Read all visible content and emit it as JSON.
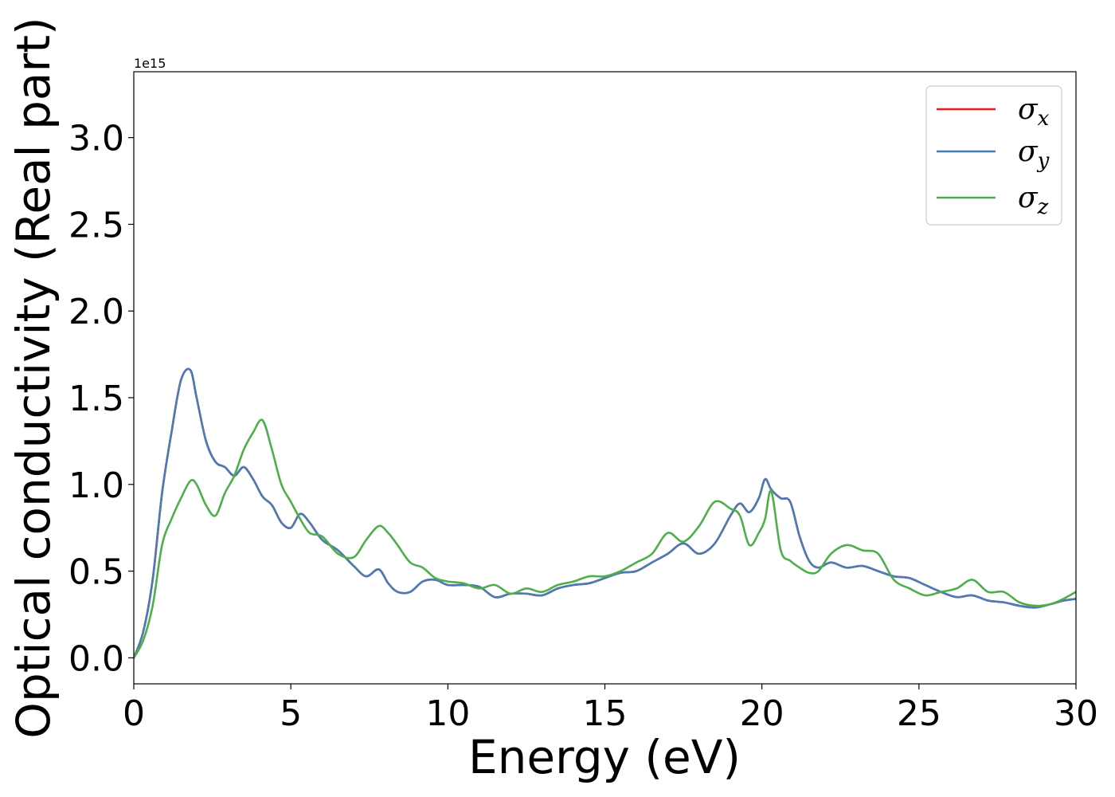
{
  "chart_data": {
    "type": "line",
    "xlabel": "Energy (eV)",
    "ylabel": "Optical conductivity (Real part)",
    "y_offset_label": "1e15",
    "xlim": [
      0,
      30
    ],
    "ylim": [
      -0.15,
      3.38
    ],
    "x_ticks": [
      0,
      5,
      10,
      15,
      20,
      25,
      30
    ],
    "x_tick_labels": [
      "0",
      "5",
      "10",
      "15",
      "20",
      "25",
      "30"
    ],
    "y_ticks": [
      0.0,
      0.5,
      1.0,
      1.5,
      2.0,
      2.5,
      3.0
    ],
    "y_tick_labels": [
      "0.0",
      "0.5",
      "1.0",
      "1.5",
      "2.0",
      "2.5",
      "3.0"
    ],
    "grid": false,
    "legend_position": "top-right",
    "series": [
      {
        "name": "σ",
        "subscript": "x",
        "color": "#e41a1c",
        "x": [
          0,
          0.3,
          0.6,
          0.9,
          1.2,
          1.5,
          1.8,
          2.0,
          2.3,
          2.6,
          2.9,
          3.2,
          3.5,
          3.8,
          4.1,
          4.4,
          4.7,
          5.0,
          5.3,
          5.6,
          6.0,
          6.5,
          7.0,
          7.4,
          7.8,
          8.1,
          8.4,
          8.8,
          9.2,
          9.6,
          10.0,
          10.5,
          11.0,
          11.5,
          12.0,
          12.5,
          13.0,
          13.5,
          14.0,
          14.5,
          15.0,
          15.5,
          16.0,
          16.5,
          17.0,
          17.5,
          18.0,
          18.5,
          19.0,
          19.3,
          19.6,
          19.9,
          20.1,
          20.3,
          20.6,
          20.9,
          21.2,
          21.5,
          21.8,
          22.2,
          22.7,
          23.2,
          23.7,
          24.2,
          24.7,
          25.2,
          25.7,
          26.2,
          26.7,
          27.2,
          27.7,
          28.2,
          28.7,
          29.2,
          29.6,
          30.0
        ],
        "values": [
          0.0,
          0.15,
          0.45,
          0.95,
          1.3,
          1.6,
          1.66,
          1.5,
          1.25,
          1.13,
          1.1,
          1.05,
          1.1,
          1.03,
          0.93,
          0.88,
          0.78,
          0.75,
          0.83,
          0.78,
          0.68,
          0.62,
          0.53,
          0.47,
          0.51,
          0.43,
          0.38,
          0.38,
          0.44,
          0.45,
          0.42,
          0.42,
          0.41,
          0.35,
          0.37,
          0.37,
          0.36,
          0.4,
          0.42,
          0.43,
          0.46,
          0.49,
          0.5,
          0.55,
          0.6,
          0.66,
          0.6,
          0.66,
          0.82,
          0.89,
          0.84,
          0.92,
          1.03,
          0.97,
          0.92,
          0.9,
          0.7,
          0.56,
          0.52,
          0.55,
          0.52,
          0.53,
          0.5,
          0.47,
          0.46,
          0.42,
          0.38,
          0.35,
          0.36,
          0.33,
          0.32,
          0.3,
          0.29,
          0.31,
          0.33,
          0.34
        ]
      },
      {
        "name": "σ",
        "subscript": "y",
        "color": "#4a7bb7",
        "x": [
          0,
          0.3,
          0.6,
          0.9,
          1.2,
          1.5,
          1.8,
          2.0,
          2.3,
          2.6,
          2.9,
          3.2,
          3.5,
          3.8,
          4.1,
          4.4,
          4.7,
          5.0,
          5.3,
          5.6,
          6.0,
          6.5,
          7.0,
          7.4,
          7.8,
          8.1,
          8.4,
          8.8,
          9.2,
          9.6,
          10.0,
          10.5,
          11.0,
          11.5,
          12.0,
          12.5,
          13.0,
          13.5,
          14.0,
          14.5,
          15.0,
          15.5,
          16.0,
          16.5,
          17.0,
          17.5,
          18.0,
          18.5,
          19.0,
          19.3,
          19.6,
          19.9,
          20.1,
          20.3,
          20.6,
          20.9,
          21.2,
          21.5,
          21.8,
          22.2,
          22.7,
          23.2,
          23.7,
          24.2,
          24.7,
          25.2,
          25.7,
          26.2,
          26.7,
          27.2,
          27.7,
          28.2,
          28.7,
          29.2,
          29.6,
          30.0
        ],
        "values": [
          0.0,
          0.15,
          0.45,
          0.95,
          1.3,
          1.6,
          1.66,
          1.5,
          1.25,
          1.13,
          1.1,
          1.05,
          1.1,
          1.03,
          0.93,
          0.88,
          0.78,
          0.75,
          0.83,
          0.78,
          0.68,
          0.62,
          0.53,
          0.47,
          0.51,
          0.43,
          0.38,
          0.38,
          0.44,
          0.45,
          0.42,
          0.42,
          0.41,
          0.35,
          0.37,
          0.37,
          0.36,
          0.4,
          0.42,
          0.43,
          0.46,
          0.49,
          0.5,
          0.55,
          0.6,
          0.66,
          0.6,
          0.66,
          0.82,
          0.89,
          0.84,
          0.92,
          1.03,
          0.97,
          0.92,
          0.9,
          0.7,
          0.56,
          0.52,
          0.55,
          0.52,
          0.53,
          0.5,
          0.47,
          0.46,
          0.42,
          0.38,
          0.35,
          0.36,
          0.33,
          0.32,
          0.3,
          0.29,
          0.31,
          0.33,
          0.34
        ]
      },
      {
        "name": "σ",
        "subscript": "z",
        "color": "#4daf4a",
        "x": [
          0,
          0.3,
          0.6,
          0.9,
          1.2,
          1.5,
          1.8,
          2.0,
          2.3,
          2.6,
          2.9,
          3.2,
          3.5,
          3.8,
          4.1,
          4.4,
          4.7,
          5.0,
          5.3,
          5.6,
          6.0,
          6.5,
          7.0,
          7.4,
          7.8,
          8.1,
          8.4,
          8.8,
          9.2,
          9.6,
          10.0,
          10.5,
          11.0,
          11.5,
          12.0,
          12.5,
          13.0,
          13.5,
          14.0,
          14.5,
          15.0,
          15.5,
          16.0,
          16.5,
          17.0,
          17.5,
          18.0,
          18.5,
          19.0,
          19.3,
          19.6,
          19.9,
          20.1,
          20.3,
          20.6,
          20.9,
          21.2,
          21.5,
          21.8,
          22.2,
          22.7,
          23.2,
          23.7,
          24.2,
          24.7,
          25.2,
          25.7,
          26.2,
          26.7,
          27.2,
          27.7,
          28.2,
          28.7,
          29.2,
          29.6,
          30.0
        ],
        "values": [
          0.0,
          0.1,
          0.3,
          0.65,
          0.8,
          0.92,
          1.02,
          1.0,
          0.88,
          0.82,
          0.95,
          1.05,
          1.2,
          1.3,
          1.37,
          1.2,
          1.0,
          0.9,
          0.8,
          0.72,
          0.7,
          0.6,
          0.58,
          0.68,
          0.76,
          0.72,
          0.65,
          0.55,
          0.52,
          0.46,
          0.44,
          0.43,
          0.4,
          0.42,
          0.37,
          0.4,
          0.38,
          0.42,
          0.44,
          0.47,
          0.47,
          0.5,
          0.55,
          0.6,
          0.72,
          0.67,
          0.76,
          0.9,
          0.86,
          0.82,
          0.65,
          0.72,
          0.8,
          0.96,
          0.62,
          0.56,
          0.52,
          0.49,
          0.5,
          0.6,
          0.65,
          0.62,
          0.6,
          0.45,
          0.4,
          0.36,
          0.38,
          0.4,
          0.45,
          0.38,
          0.38,
          0.32,
          0.3,
          0.31,
          0.34,
          0.38
        ]
      }
    ]
  }
}
